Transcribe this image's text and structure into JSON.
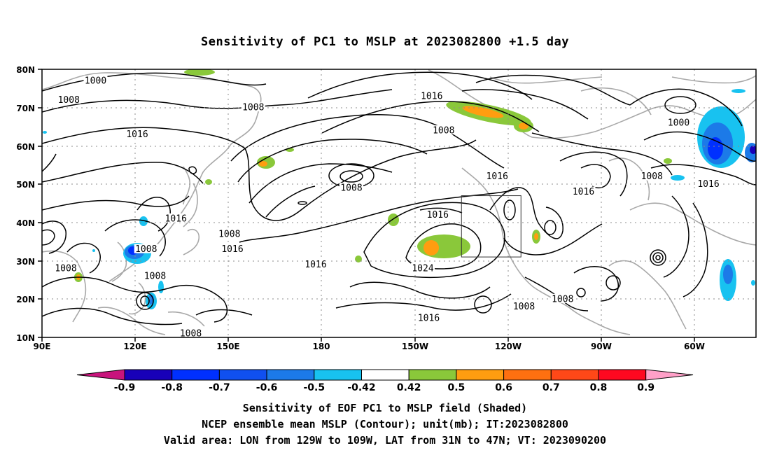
{
  "title": "Sensitivity of PC1 to MSLP at 2023082800 +1.5 day",
  "axes": {
    "lat_ticks": [
      "80N",
      "70N",
      "60N",
      "50N",
      "40N",
      "30N",
      "20N",
      "10N"
    ],
    "lon_ticks": [
      "90E",
      "120E",
      "150E",
      "180",
      "150W",
      "120W",
      "90W",
      "60W"
    ],
    "grid": "dotted"
  },
  "contour_labels": [
    {
      "text": "1000",
      "lon": 108,
      "lat": 77
    },
    {
      "text": "1008",
      "lon": 99,
      "lat": 72
    },
    {
      "text": "1008",
      "lon": 161,
      "lat": 70
    },
    {
      "text": "1016",
      "lon": 221,
      "lat": 73
    },
    {
      "text": "1016",
      "lon": 122,
      "lat": 63
    },
    {
      "text": "1008",
      "lon": 225,
      "lat": 64
    },
    {
      "text": "1000",
      "lon": 304,
      "lat": 66
    },
    {
      "text": "1008",
      "lon": 194,
      "lat": 49
    },
    {
      "text": "1016",
      "lon": 243,
      "lat": 52
    },
    {
      "text": "1008",
      "lon": 295,
      "lat": 52
    },
    {
      "text": "1016",
      "lon": 314,
      "lat": 50
    },
    {
      "text": "1016",
      "lon": 272,
      "lat": 48
    },
    {
      "text": "1016",
      "lon": 135,
      "lat": 41
    },
    {
      "text": "1016",
      "lon": 223,
      "lat": 42
    },
    {
      "text": "1008",
      "lon": 153,
      "lat": 37
    },
    {
      "text": "1016",
      "lon": 154,
      "lat": 33
    },
    {
      "text": "1008",
      "lon": 125,
      "lat": 33
    },
    {
      "text": "1008",
      "lon": 98,
      "lat": 28
    },
    {
      "text": "1008",
      "lon": 128,
      "lat": 26
    },
    {
      "text": "1016",
      "lon": 182,
      "lat": 29
    },
    {
      "text": "1024",
      "lon": 218,
      "lat": 28
    },
    {
      "text": "1016",
      "lon": 220,
      "lat": 15
    },
    {
      "text": "1008",
      "lon": 252,
      "lat": 18
    },
    {
      "text": "1008",
      "lon": 265,
      "lat": 20
    },
    {
      "text": "1008",
      "lon": 140,
      "lat": 11
    }
  ],
  "colorbar": {
    "labels": [
      "-0.9",
      "-0.8",
      "-0.7",
      "-0.6",
      "-0.5",
      "-0.42",
      "0.42",
      "0.5",
      "0.6",
      "0.7",
      "0.8",
      "0.9"
    ],
    "colors": [
      "#1800b8",
      "#0030ff",
      "#1050f0",
      "#1c7ae8",
      "#18c2f0",
      "#ffffff",
      "#8ac83a",
      "#ff9d10",
      "#ff7010",
      "#ff4818",
      "#ff0820"
    ],
    "low_extend_color": "#c8147c",
    "high_extend_color": "#ffa0c8"
  },
  "valid_area": {
    "lon_min": -129,
    "lon_max": -109,
    "lat_min": 31,
    "lat_max": 47
  },
  "captions": [
    "Sensitivity of EOF PC1 to MSLP field (Shaded)",
    "NCEP ensemble mean MSLP (Contour); unit(mb); IT:2023082800",
    "Valid area: LON from 129W to 109W, LAT from 31N to 47N; VT: 2023090200"
  ]
}
